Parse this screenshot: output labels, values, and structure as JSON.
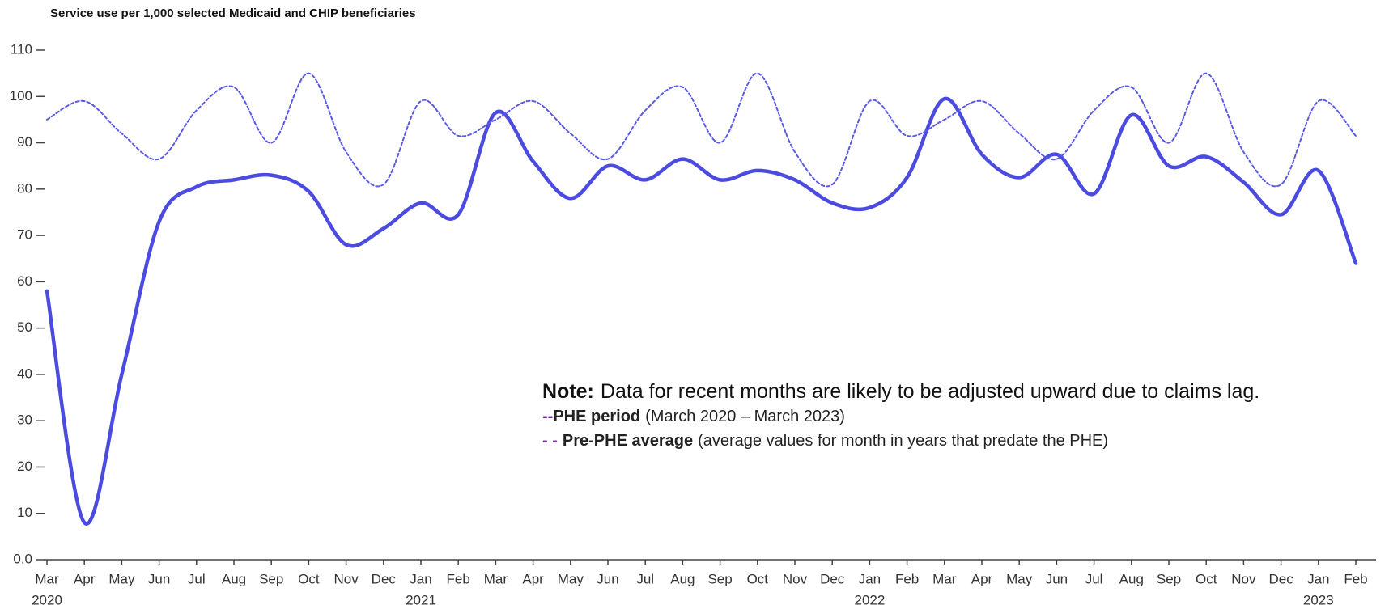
{
  "chart_data": {
    "type": "line",
    "title": "Service use per 1,000 selected Medicaid and CHIP beneficiaries",
    "categories": [
      "Mar",
      "Apr",
      "May",
      "Jun",
      "Jul",
      "Aug",
      "Sep",
      "Oct",
      "Nov",
      "Dec",
      "Jan",
      "Feb",
      "Mar",
      "Apr",
      "May",
      "Jun",
      "Jul",
      "Aug",
      "Sep",
      "Oct",
      "Nov",
      "Dec",
      "Jan",
      "Feb",
      "Mar",
      "Apr",
      "May",
      "Jun",
      "Jul",
      "Aug",
      "Sep",
      "Oct",
      "Nov",
      "Dec",
      "Jan",
      "Feb"
    ],
    "year_labels": [
      {
        "index": 0,
        "label": "2020"
      },
      {
        "index": 10,
        "label": "2021"
      },
      {
        "index": 22,
        "label": "2022"
      },
      {
        "index": 34,
        "label": "2023"
      }
    ],
    "ylim": [
      0,
      110
    ],
    "yticks": [
      {
        "value": 0,
        "label": "0.0"
      },
      10,
      20,
      30,
      40,
      50,
      60,
      70,
      80,
      90,
      100,
      110
    ],
    "series": [
      {
        "name": "PHE period",
        "legend_symbol": "--",
        "description": "(March 2020 – March 2023)",
        "color": "#4b4bdf",
        "dashed": false,
        "values": [
          58,
          8,
          40,
          73,
          80.5,
          82,
          83,
          79.5,
          68,
          71.5,
          77,
          74.5,
          96.5,
          86,
          78,
          85,
          82,
          86.5,
          82,
          84,
          82,
          77,
          76,
          82.5,
          99.5,
          87.5,
          82.5,
          87.5,
          79,
          96,
          85,
          87,
          81.5,
          74.5,
          84,
          64
        ]
      },
      {
        "name": "Pre-PHE average",
        "legend_symbol": "- -",
        "description": "(average values for month in years that predate the PHE)",
        "color": "#5a5ae6",
        "dashed": true,
        "values": [
          95,
          99,
          92,
          86.5,
          97,
          102,
          90,
          105,
          88,
          81,
          99,
          91.5,
          95,
          99,
          92,
          86.5,
          97,
          102,
          90,
          105,
          88,
          81,
          99,
          91.5,
          95,
          99,
          92,
          86.5,
          97,
          102,
          90,
          105,
          88,
          81,
          99,
          91.5
        ]
      }
    ],
    "note": {
      "label": "Note:",
      "text": "Data for recent months are likely to be adjusted upward due to claims lag."
    }
  }
}
